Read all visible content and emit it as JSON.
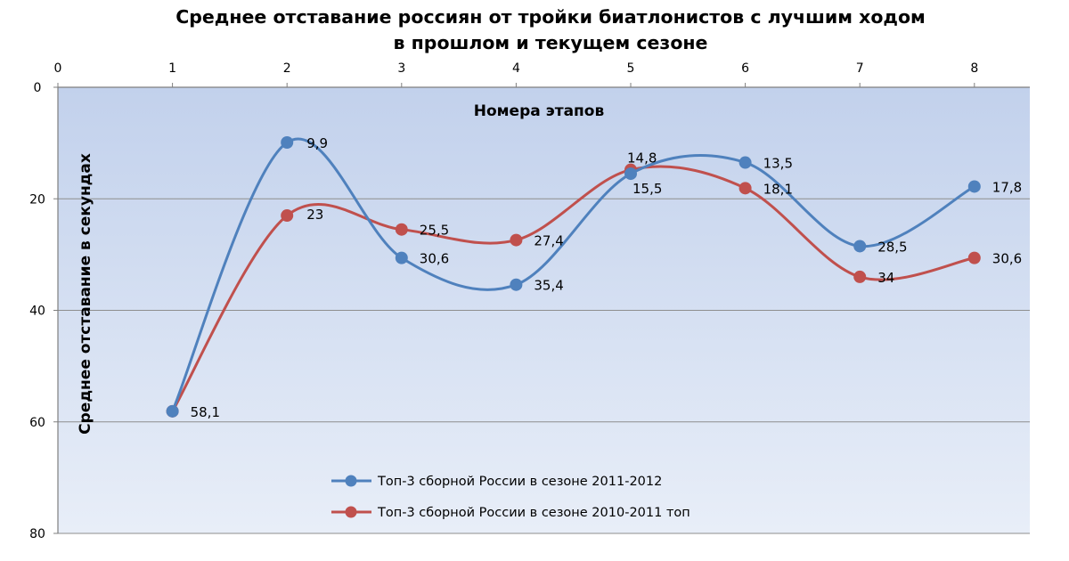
{
  "chart_data": {
    "type": "line",
    "title_lines": [
      "Среднее отставание россиян от тройки биатлонистов с лучшим ходом",
      "в прошлом и текущем сезоне"
    ],
    "xlabel": "Номера этапов",
    "ylabel": "Среднее отставание в секундах",
    "xlim": [
      0,
      8
    ],
    "ylim": [
      0,
      80
    ],
    "y_inverted": true,
    "x_axis_position": "top",
    "x_ticks": [
      "0",
      "1",
      "2",
      "3",
      "4",
      "5",
      "6",
      "7",
      "8"
    ],
    "y_ticks": [
      "0",
      "20",
      "40",
      "60",
      "80"
    ],
    "grid": "horizontal",
    "smooth": true,
    "legend_position": "bottom-center",
    "series": [
      {
        "name": "Топ-3 сборной России в сезоне 2011-2012",
        "color": "#4f81bd",
        "x": [
          1,
          2,
          3,
          4,
          5,
          6,
          7,
          8
        ],
        "y": [
          58.1,
          9.9,
          30.6,
          35.4,
          15.5,
          13.5,
          28.5,
          17.8
        ],
        "labels": [
          "58,1",
          "9,9",
          "30,6",
          "35,4",
          "15,5",
          "13,5",
          "28,5",
          "17,8"
        ]
      },
      {
        "name": "Топ-3 сборной России в сезоне 2010-2011 топ",
        "color": "#c0504d",
        "x": [
          1,
          2,
          3,
          4,
          5,
          6,
          7,
          8
        ],
        "y": [
          58.1,
          23,
          25.5,
          27.4,
          14.8,
          18.1,
          34,
          30.6
        ],
        "labels": [
          "",
          "23",
          "25,5",
          "27,4",
          "14,8",
          "18,1",
          "34",
          "30,6"
        ]
      }
    ]
  }
}
